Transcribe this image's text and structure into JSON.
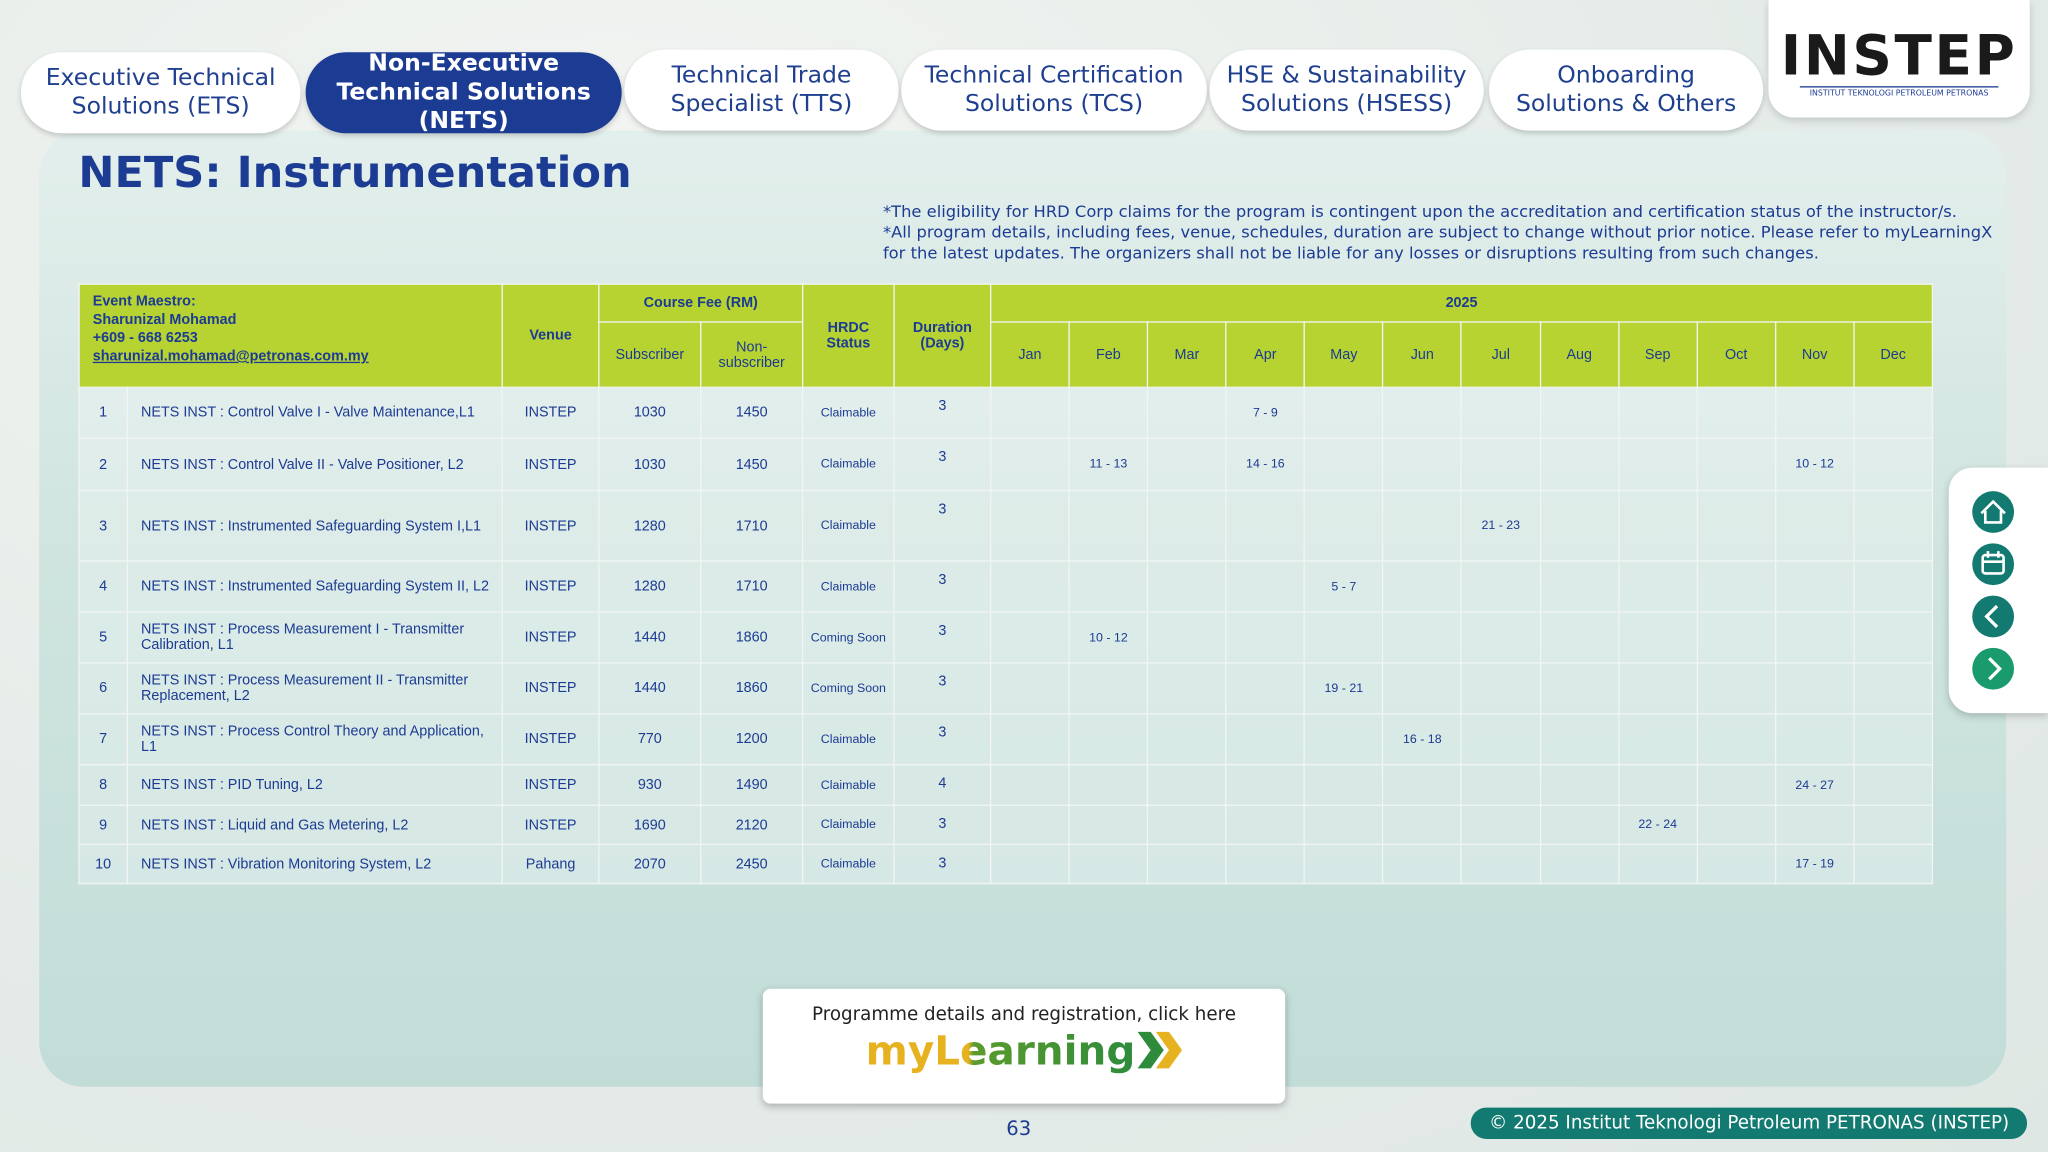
{
  "tabs": [
    {
      "label": "Executive Technical Solutions (ETS)",
      "active": false
    },
    {
      "label": "Non-Executive Technical Solutions (NETS)",
      "active": true
    },
    {
      "label": "Technical Trade Specialist (TTS)",
      "active": false
    },
    {
      "label": "Technical Certification Solutions (TCS)",
      "active": false
    },
    {
      "label": "HSE & Sustainability Solutions (HSESS)",
      "active": false
    },
    {
      "label": "Onboarding Solutions & Others",
      "active": false
    }
  ],
  "logo": {
    "name": "INSTEP",
    "tagline": "INSTITUT TEKNOLOGI PETROLEUM PETRONAS"
  },
  "title": "NETS: Instrumentation",
  "notes": [
    "*The eligibility for HRD Corp claims for the program is contingent upon the accreditation and certification status of the instructor/s.",
    "*All program details, including fees, venue, schedules, duration are subject to change without prior notice. Please refer to myLearningX",
    "for the latest updates. The organizers shall not be liable for any losses or disruptions resulting from such changes."
  ],
  "table": {
    "maestro": [
      "Event Maestro:",
      "Sharunizal Mohamad",
      "+609 - 668 6253",
      "sharunizal.mohamad@petronas.com.my"
    ],
    "headers": {
      "venue": "Venue",
      "fee": "Course Fee (RM)",
      "subscriber": "Subscriber",
      "nonsubscriber": "Non-subscriber",
      "status": "HRDC Status",
      "duration": "Duration (Days)",
      "year": "2025"
    },
    "months": [
      "Jan",
      "Feb",
      "Mar",
      "Apr",
      "May",
      "Jun",
      "Jul",
      "Aug",
      "Sep",
      "Oct",
      "Nov",
      "Dec"
    ],
    "rows": [
      [
        1,
        "NETS INST : Control Valve I - Valve Maintenance,L1",
        "INSTEP",
        1030,
        1450,
        "Claimable",
        3,
        [
          null,
          null,
          null,
          "7 - 9",
          null,
          null,
          null,
          null,
          null,
          null,
          null,
          null
        ]
      ],
      [
        2,
        "NETS INST : Control Valve  II - Valve Positioner, L2",
        "INSTEP",
        1030,
        1450,
        "Claimable",
        3,
        [
          null,
          "11 - 13",
          null,
          "14 - 16",
          null,
          null,
          null,
          null,
          null,
          null,
          "10 - 12",
          null
        ]
      ],
      [
        3,
        "NETS INST : Instrumented Safeguarding System I,L1",
        "INSTEP",
        1280,
        1710,
        "Claimable",
        3,
        [
          null,
          null,
          null,
          null,
          null,
          null,
          "21 - 23",
          null,
          null,
          null,
          null,
          null
        ]
      ],
      [
        4,
        "NETS INST : Instrumented Safeguarding System II, L2",
        "INSTEP",
        1280,
        1710,
        "Claimable",
        3,
        [
          null,
          null,
          null,
          null,
          "5 - 7",
          null,
          null,
          null,
          null,
          null,
          null,
          null
        ]
      ],
      [
        5,
        "NETS INST : Process Measurement I - Transmitter Calibration, L1",
        "INSTEP",
        1440,
        1860,
        "Coming Soon",
        3,
        [
          null,
          "10 - 12",
          null,
          null,
          null,
          null,
          null,
          null,
          null,
          null,
          null,
          null
        ]
      ],
      [
        6,
        "NETS INST : Process Measurement II - Transmitter Replacement, L2",
        "INSTEP",
        1440,
        1860,
        "Coming Soon",
        3,
        [
          null,
          null,
          null,
          null,
          "19 - 21",
          null,
          null,
          null,
          null,
          null,
          null,
          null
        ]
      ],
      [
        7,
        "NETS INST : Process Control Theory and Application, L1",
        "INSTEP",
        770,
        1200,
        "Claimable",
        3,
        [
          null,
          null,
          null,
          null,
          null,
          "16 - 18",
          null,
          null,
          null,
          null,
          null,
          null
        ]
      ],
      [
        8,
        "NETS INST : PID Tuning, L2",
        "INSTEP",
        930,
        1490,
        "Claimable",
        4,
        [
          null,
          null,
          null,
          null,
          null,
          null,
          null,
          null,
          null,
          null,
          "24 - 27",
          null
        ]
      ],
      [
        9,
        "NETS INST : Liquid and Gas Metering, L2",
        "INSTEP",
        1690,
        2120,
        "Claimable",
        3,
        [
          null,
          null,
          null,
          null,
          null,
          null,
          null,
          null,
          "22 - 24",
          null,
          null,
          null
        ]
      ],
      [
        10,
        "NETS INST : Vibration Monitoring System, L2",
        "Pahang",
        2070,
        2450,
        "Claimable",
        3,
        [
          null,
          null,
          null,
          null,
          null,
          null,
          null,
          null,
          null,
          null,
          "17 - 19",
          null
        ]
      ]
    ]
  },
  "footer": {
    "cta": "Programme details and registration, click here",
    "brand": "myLearning",
    "page": "63",
    "copyright": "© 2025 Institut Teknologi Petroleum PETRONAS (INSTEP)"
  }
}
